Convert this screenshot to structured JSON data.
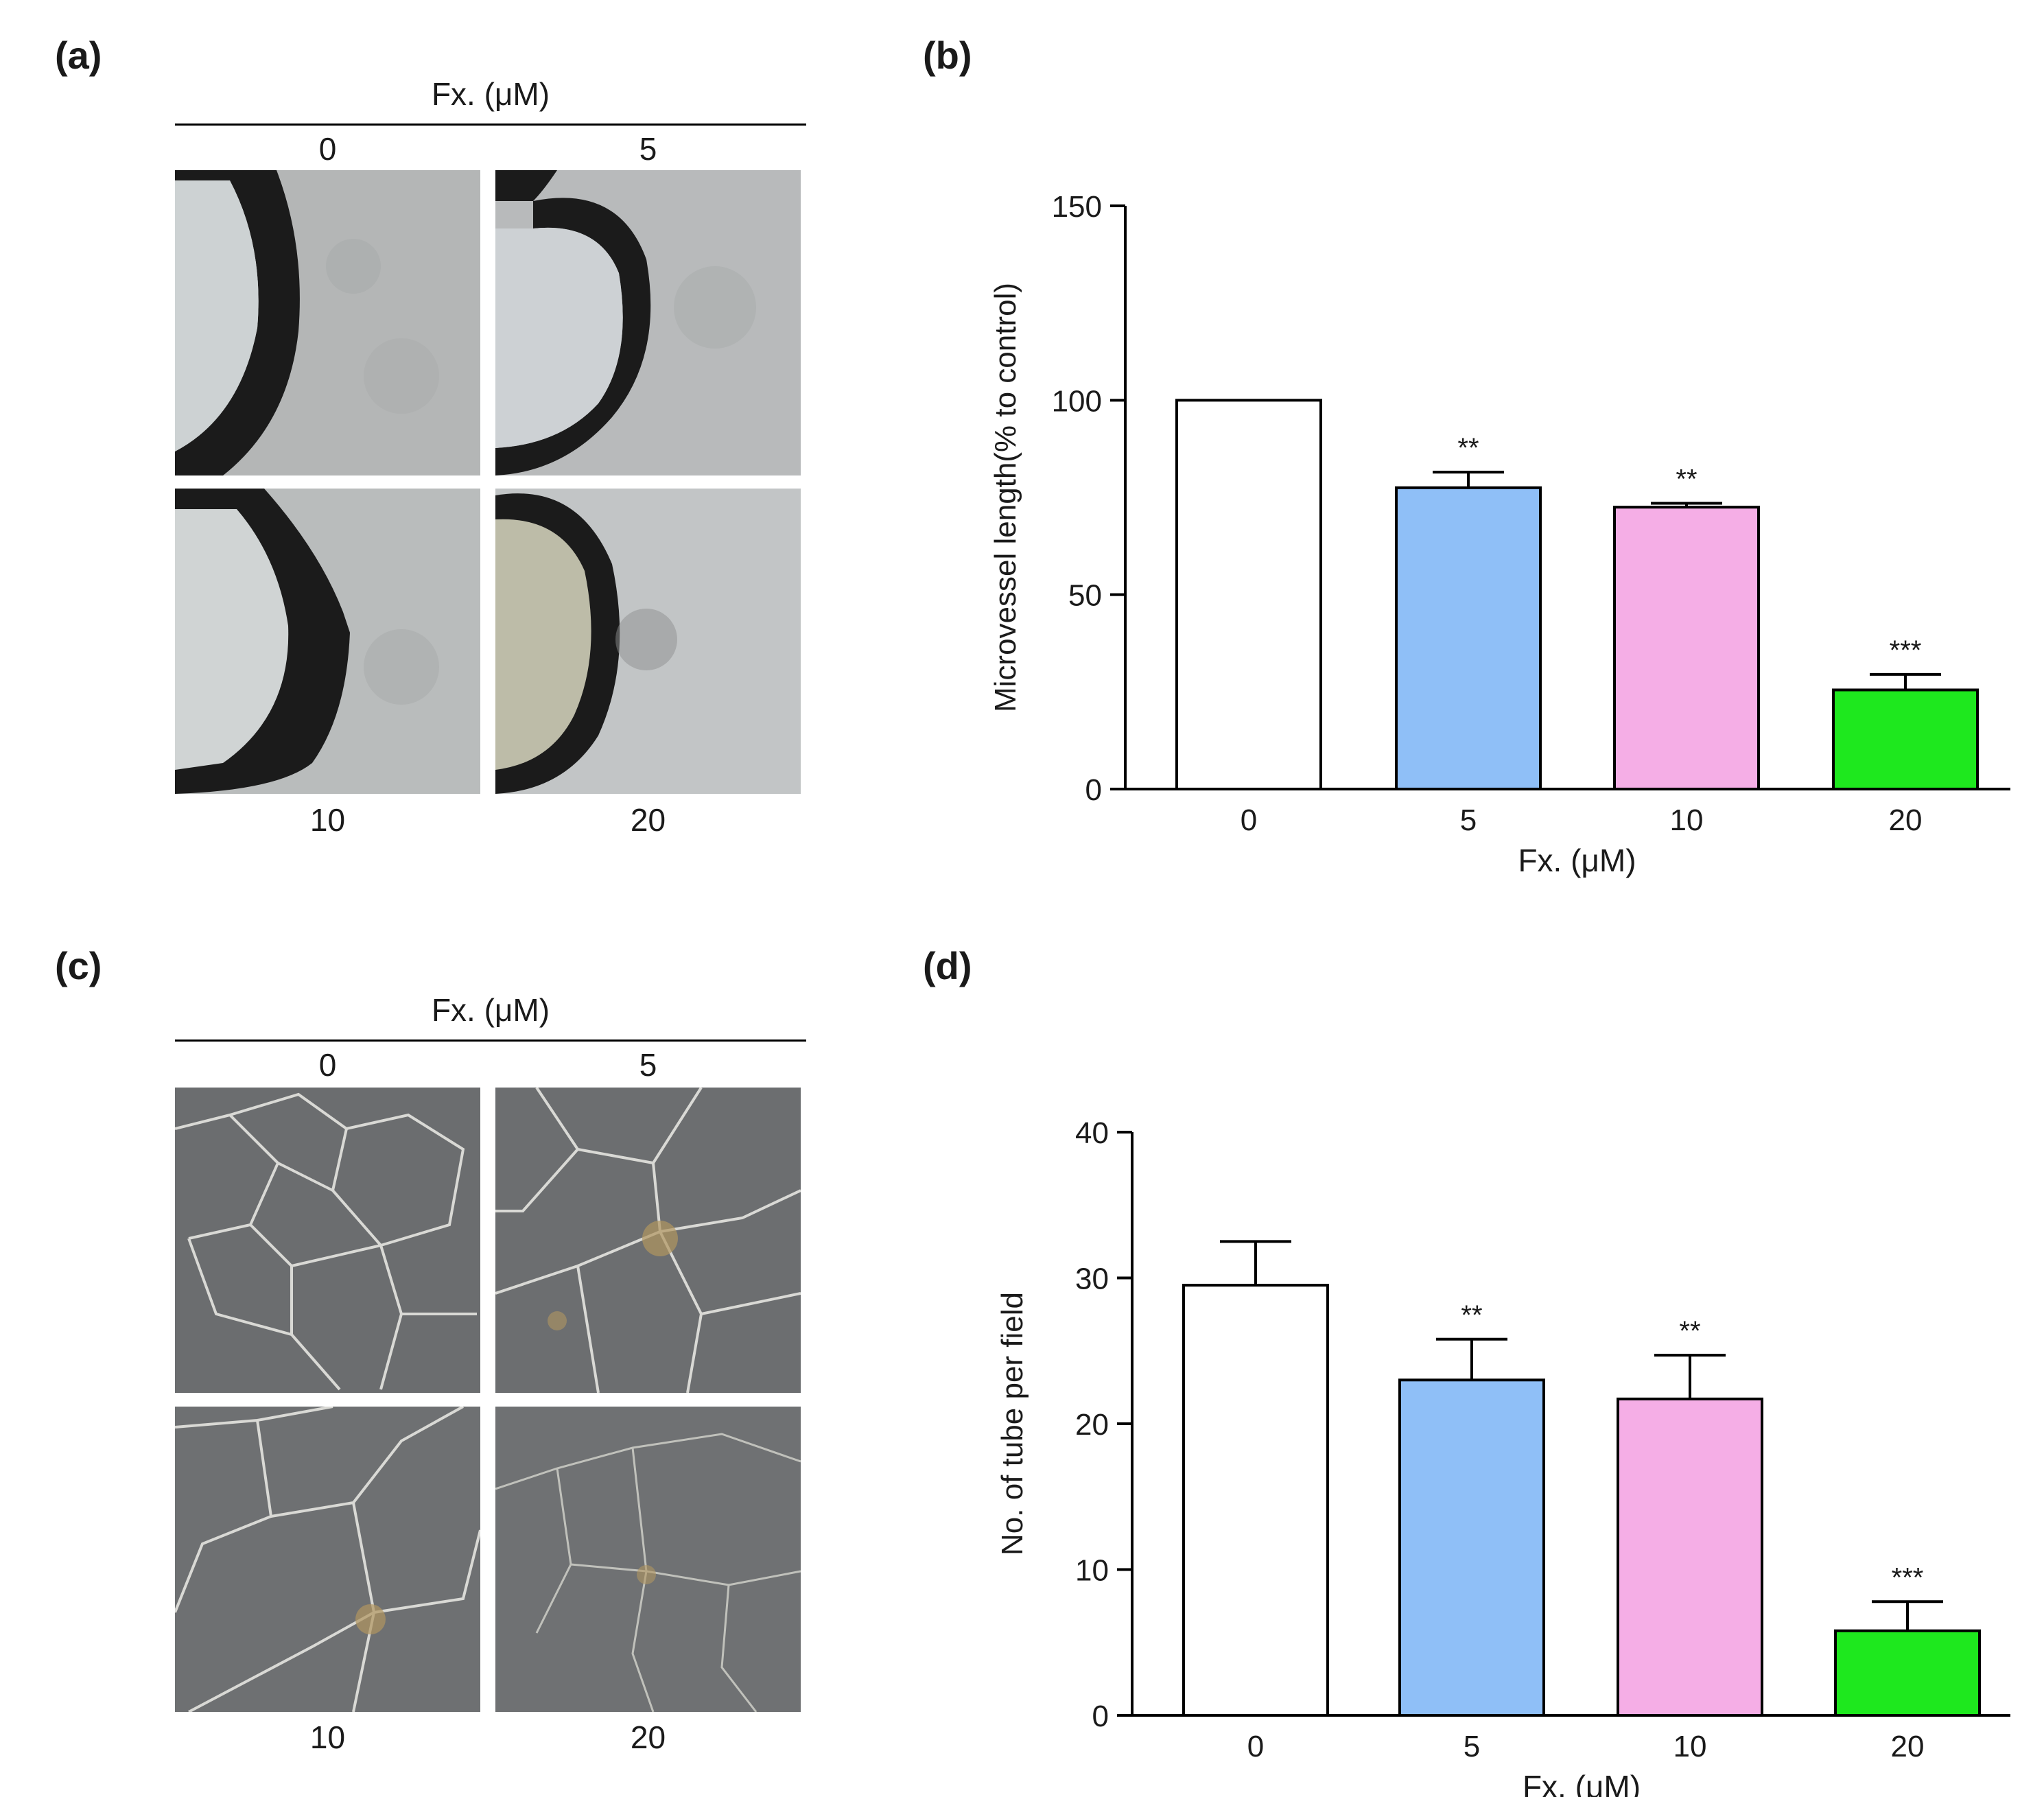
{
  "panels": {
    "a": {
      "label": "(a)",
      "header": "Fx. (μM)",
      "top_labels": [
        "0",
        "5"
      ],
      "bottom_labels": [
        "10",
        "20"
      ]
    },
    "b": {
      "label": "(b)"
    },
    "c": {
      "label": "(c)",
      "header": "Fx. (μM)",
      "top_labels": [
        "0",
        "5"
      ],
      "bottom_labels": [
        "10",
        "20"
      ]
    },
    "d": {
      "label": "(d)"
    }
  },
  "colors": {
    "dose_0": "#ffffff",
    "dose_5": "#8fbff7",
    "dose_10": "#f5aee6",
    "dose_20": "#1ee81e"
  },
  "chart_data": [
    {
      "id": "b",
      "type": "bar",
      "categories": [
        "0",
        "5",
        "10",
        "20"
      ],
      "values": [
        100,
        77.5,
        72.5,
        25.5
      ],
      "errors": [
        0,
        4,
        1,
        4
      ],
      "significance": [
        "",
        "**",
        "**",
        "***"
      ],
      "xlabel": "Fx. (μM)",
      "ylabel": "Microvessel length(% to control)",
      "ylim": [
        0,
        150
      ],
      "yticks": [
        "0",
        "50",
        "100",
        "150"
      ],
      "grid": false
    },
    {
      "id": "d",
      "type": "bar",
      "categories": [
        "0",
        "5",
        "10",
        "20"
      ],
      "values": [
        29.5,
        23,
        21.7,
        5.8
      ],
      "errors": [
        3,
        2.8,
        3,
        2
      ],
      "significance": [
        "",
        "**",
        "**",
        "***"
      ],
      "xlabel": "Fx. (μM)",
      "ylabel": "No. of tube per field",
      "ylim": [
        0,
        40
      ],
      "yticks": [
        "0",
        "10",
        "20",
        "30",
        "40"
      ],
      "grid": false
    }
  ]
}
